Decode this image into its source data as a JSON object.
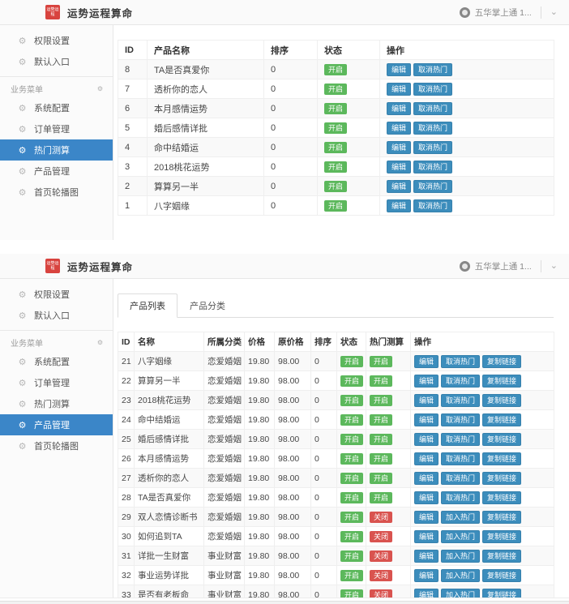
{
  "colors": {
    "active_blue": "#3b86c8",
    "button_blue": "#3c8dbc",
    "open_green": "#5cb85c",
    "closed_red": "#d9534f",
    "logo_red": "#d8433e"
  },
  "icons": {
    "gear": "⚙",
    "chevron": "⌄"
  },
  "badge_colors": {
    "开启": "#5cb85c",
    "关闭": "#d9534f"
  },
  "header": {
    "logo_text": "运势运程",
    "title": "运势运程算命",
    "username": "五华掌上通 1..."
  },
  "sidebar": {
    "top_items": [
      {
        "label": "权限设置"
      },
      {
        "label": "默认入口"
      }
    ],
    "section_label": "业务菜单",
    "menu_items": [
      {
        "label": "系统配置"
      },
      {
        "label": "订单管理"
      },
      {
        "label": "热门测算"
      },
      {
        "label": "产品管理"
      },
      {
        "label": "首页轮播图"
      }
    ]
  },
  "panel1": {
    "sidebar_active": "热门测算",
    "table": {
      "headers": [
        "ID",
        "产品名称",
        "排序",
        "状态",
        "操作"
      ],
      "fields": [
        {
          "key": "id",
          "type": "text"
        },
        {
          "key": "name",
          "type": "text"
        },
        {
          "key": "sort",
          "type": "text"
        },
        {
          "key": "status",
          "type": "badge"
        },
        {
          "key": "actions",
          "type": "buttons"
        }
      ],
      "rows": [
        {
          "id": "8",
          "name": "TA是否真爱你",
          "sort": "0",
          "status": "开启",
          "actions": [
            "编辑",
            "取消热门"
          ]
        },
        {
          "id": "7",
          "name": "透析你的恋人",
          "sort": "0",
          "status": "开启",
          "actions": [
            "编辑",
            "取消热门"
          ]
        },
        {
          "id": "6",
          "name": "本月感情运势",
          "sort": "0",
          "status": "开启",
          "actions": [
            "编辑",
            "取消热门"
          ]
        },
        {
          "id": "5",
          "name": "婚后感情详批",
          "sort": "0",
          "status": "开启",
          "actions": [
            "编辑",
            "取消热门"
          ]
        },
        {
          "id": "4",
          "name": "命中结婚运",
          "sort": "0",
          "status": "开启",
          "actions": [
            "编辑",
            "取消热门"
          ]
        },
        {
          "id": "3",
          "name": "2018桃花运势",
          "sort": "0",
          "status": "开启",
          "actions": [
            "编辑",
            "取消热门"
          ]
        },
        {
          "id": "2",
          "name": "算算另一半",
          "sort": "0",
          "status": "开启",
          "actions": [
            "编辑",
            "取消热门"
          ]
        },
        {
          "id": "1",
          "name": "八字姻缘",
          "sort": "0",
          "status": "开启",
          "actions": [
            "编辑",
            "取消热门"
          ]
        }
      ]
    }
  },
  "panel2": {
    "sidebar_active": "产品管理",
    "tabs": [
      {
        "label": "产品列表",
        "active": true
      },
      {
        "label": "产品分类",
        "active": false
      }
    ],
    "table": {
      "headers": [
        "ID",
        "名称",
        "所属分类",
        "价格",
        "原价格",
        "排序",
        "状态",
        "热门测算",
        "操作"
      ],
      "fields": [
        {
          "key": "id",
          "type": "text"
        },
        {
          "key": "name",
          "type": "text"
        },
        {
          "key": "category",
          "type": "text"
        },
        {
          "key": "price",
          "type": "text"
        },
        {
          "key": "orig_price",
          "type": "text"
        },
        {
          "key": "sort",
          "type": "text"
        },
        {
          "key": "status",
          "type": "badge"
        },
        {
          "key": "hot",
          "type": "badge"
        },
        {
          "key": "actions",
          "type": "buttons"
        }
      ],
      "rows": [
        {
          "id": "21",
          "name": "八字姻缘",
          "category": "恋爱婚姻",
          "price": "19.80",
          "orig_price": "98.00",
          "sort": "0",
          "status": "开启",
          "hot": "开启",
          "actions": [
            "编辑",
            "取消热门",
            "复制链接"
          ]
        },
        {
          "id": "22",
          "name": "算算另一半",
          "category": "恋爱婚姻",
          "price": "19.80",
          "orig_price": "98.00",
          "sort": "0",
          "status": "开启",
          "hot": "开启",
          "actions": [
            "编辑",
            "取消热门",
            "复制链接"
          ]
        },
        {
          "id": "23",
          "name": "2018桃花运势",
          "category": "恋爱婚姻",
          "price": "19.80",
          "orig_price": "98.00",
          "sort": "0",
          "status": "开启",
          "hot": "开启",
          "actions": [
            "编辑",
            "取消热门",
            "复制链接"
          ]
        },
        {
          "id": "24",
          "name": "命中结婚运",
          "category": "恋爱婚姻",
          "price": "19.80",
          "orig_price": "98.00",
          "sort": "0",
          "status": "开启",
          "hot": "开启",
          "actions": [
            "编辑",
            "取消热门",
            "复制链接"
          ]
        },
        {
          "id": "25",
          "name": "婚后感情详批",
          "category": "恋爱婚姻",
          "price": "19.80",
          "orig_price": "98.00",
          "sort": "0",
          "status": "开启",
          "hot": "开启",
          "actions": [
            "编辑",
            "取消热门",
            "复制链接"
          ]
        },
        {
          "id": "26",
          "name": "本月感情运势",
          "category": "恋爱婚姻",
          "price": "19.80",
          "orig_price": "98.00",
          "sort": "0",
          "status": "开启",
          "hot": "开启",
          "actions": [
            "编辑",
            "取消热门",
            "复制链接"
          ]
        },
        {
          "id": "27",
          "name": "透析你的恋人",
          "category": "恋爱婚姻",
          "price": "19.80",
          "orig_price": "98.00",
          "sort": "0",
          "status": "开启",
          "hot": "开启",
          "actions": [
            "编辑",
            "取消热门",
            "复制链接"
          ]
        },
        {
          "id": "28",
          "name": "TA是否真爱你",
          "category": "恋爱婚姻",
          "price": "19.80",
          "orig_price": "98.00",
          "sort": "0",
          "status": "开启",
          "hot": "开启",
          "actions": [
            "编辑",
            "取消热门",
            "复制链接"
          ]
        },
        {
          "id": "29",
          "name": "双人恋情诊断书",
          "category": "恋爱婚姻",
          "price": "19.80",
          "orig_price": "98.00",
          "sort": "0",
          "status": "开启",
          "hot": "关闭",
          "actions": [
            "编辑",
            "加入热门",
            "复制链接"
          ]
        },
        {
          "id": "30",
          "name": "如何追到TA",
          "category": "恋爱婚姻",
          "price": "19.80",
          "orig_price": "98.00",
          "sort": "0",
          "status": "开启",
          "hot": "关闭",
          "actions": [
            "编辑",
            "加入热门",
            "复制链接"
          ]
        },
        {
          "id": "31",
          "name": "详批一生财富",
          "category": "事业财富",
          "price": "19.80",
          "orig_price": "98.00",
          "sort": "0",
          "status": "开启",
          "hot": "关闭",
          "actions": [
            "编辑",
            "加入热门",
            "复制链接"
          ]
        },
        {
          "id": "32",
          "name": "事业运势详批",
          "category": "事业财富",
          "price": "19.80",
          "orig_price": "98.00",
          "sort": "0",
          "status": "开启",
          "hot": "关闭",
          "actions": [
            "编辑",
            "加入热门",
            "复制链接"
          ]
        },
        {
          "id": "33",
          "name": "是否有老板命",
          "category": "事业财富",
          "price": "19.80",
          "orig_price": "98.00",
          "sort": "0",
          "status": "开启",
          "hot": "关闭",
          "actions": [
            "编辑",
            "加入热门",
            "复制链接"
          ]
        }
      ]
    }
  }
}
